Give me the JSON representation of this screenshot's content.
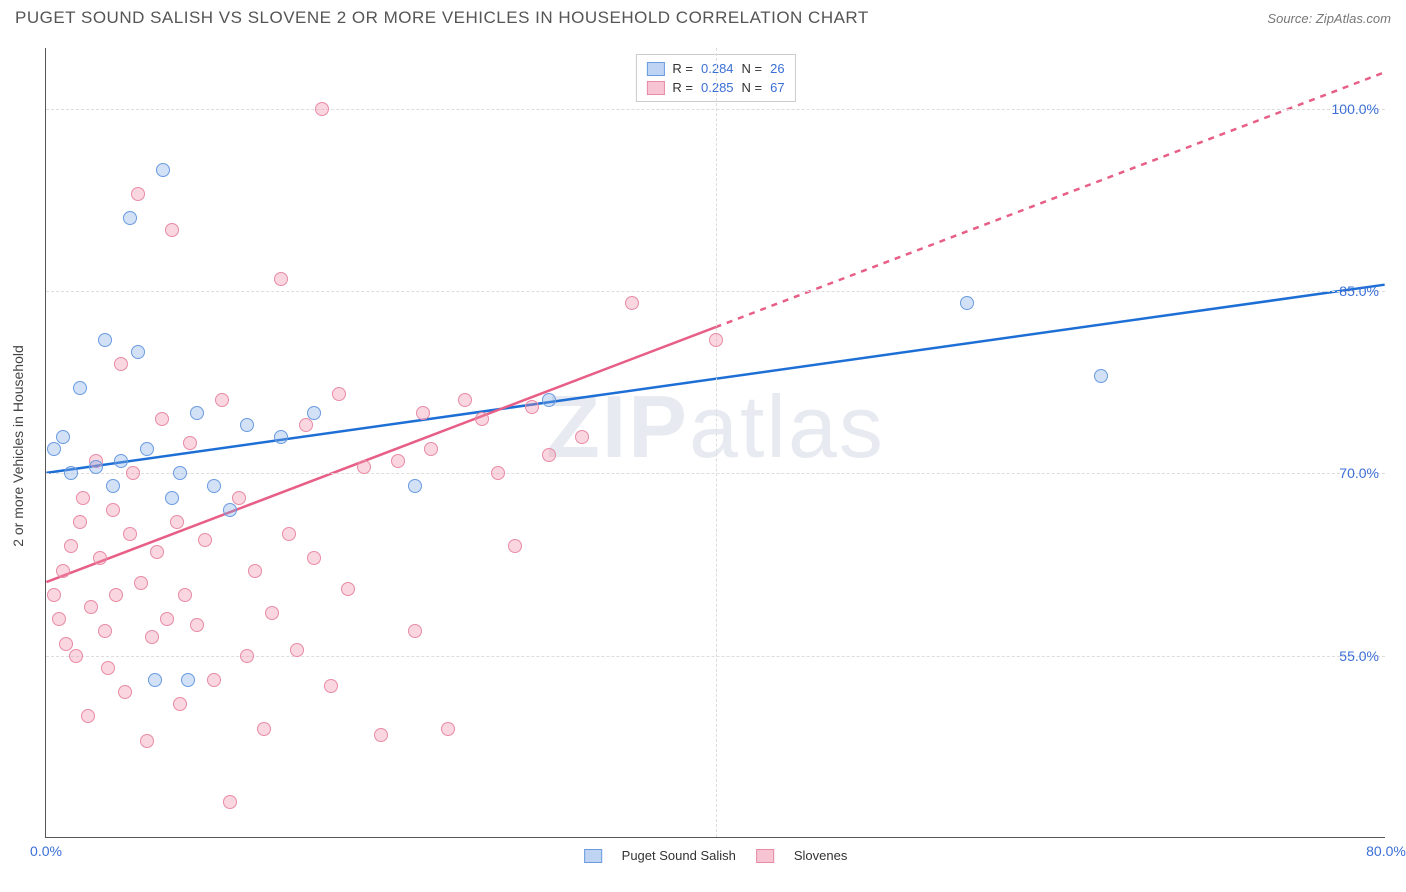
{
  "header": {
    "title": "PUGET SOUND SALISH VS SLOVENE 2 OR MORE VEHICLES IN HOUSEHOLD CORRELATION CHART",
    "source_label": "Source:",
    "source_value": "ZipAtlas.com"
  },
  "watermark": {
    "part1": "ZIP",
    "part2": "atlas"
  },
  "chart": {
    "type": "scatter",
    "xlim": [
      0,
      80
    ],
    "ylim": [
      40,
      105
    ],
    "x_ticks": [
      0,
      40,
      80
    ],
    "x_tick_labels": [
      "0.0%",
      "",
      "80.0%"
    ],
    "y_ticks": [
      55,
      70,
      85,
      100
    ],
    "y_tick_labels": [
      "55.0%",
      "70.0%",
      "85.0%",
      "100.0%"
    ],
    "yaxis_title": "2 or more Vehicles in Household",
    "grid_color": "#dddddd",
    "background_color": "#ffffff",
    "colors": {
      "blue_fill": "rgba(125,170,230,0.35)",
      "blue_stroke": "#6a9be0",
      "blue_line": "#1d6fd6",
      "pink_fill": "rgba(240,140,165,0.35)",
      "pink_stroke": "#e88aa5",
      "pink_line": "#e75f86",
      "axis_text": "#3b6fd6"
    },
    "legend_top": {
      "series": [
        {
          "color": "blue",
          "r_label": "R =",
          "r_val": "0.284",
          "n_label": "N =",
          "n_val": "26"
        },
        {
          "color": "pink",
          "r_label": "R =",
          "r_val": "0.285",
          "n_label": "N =",
          "n_val": "67"
        }
      ]
    },
    "legend_bottom": {
      "items": [
        {
          "color": "blue",
          "label": "Puget Sound Salish"
        },
        {
          "color": "pink",
          "label": "Slovenes"
        }
      ]
    },
    "trend_lines": {
      "blue": {
        "x1": 0,
        "y1": 70,
        "x2": 80,
        "y2": 85.5,
        "dashed_from_x": null
      },
      "pink": {
        "x1": 0,
        "y1": 61,
        "x2": 80,
        "y2": 103,
        "dashed_from_x": 40
      }
    },
    "series": {
      "blue": [
        [
          0.5,
          72
        ],
        [
          1,
          73
        ],
        [
          1.5,
          70
        ],
        [
          2,
          77
        ],
        [
          3,
          70.5
        ],
        [
          3.5,
          81
        ],
        [
          4,
          69
        ],
        [
          4.5,
          71
        ],
        [
          5,
          91
        ],
        [
          5.5,
          80
        ],
        [
          6,
          72
        ],
        [
          6.5,
          53
        ],
        [
          7,
          95
        ],
        [
          7.5,
          68
        ],
        [
          8,
          70
        ],
        [
          8.5,
          53
        ],
        [
          9,
          75
        ],
        [
          10,
          69
        ],
        [
          11,
          67
        ],
        [
          12,
          74
        ],
        [
          14,
          73
        ],
        [
          16,
          75
        ],
        [
          22,
          69
        ],
        [
          30,
          76
        ],
        [
          55,
          84
        ],
        [
          63,
          78
        ]
      ],
      "pink": [
        [
          0.5,
          60
        ],
        [
          0.8,
          58
        ],
        [
          1,
          62
        ],
        [
          1.2,
          56
        ],
        [
          1.5,
          64
        ],
        [
          1.8,
          55
        ],
        [
          2,
          66
        ],
        [
          2.2,
          68
        ],
        [
          2.5,
          50
        ],
        [
          2.7,
          59
        ],
        [
          3,
          71
        ],
        [
          3.2,
          63
        ],
        [
          3.5,
          57
        ],
        [
          3.7,
          54
        ],
        [
          4,
          67
        ],
        [
          4.2,
          60
        ],
        [
          4.5,
          79
        ],
        [
          4.7,
          52
        ],
        [
          5,
          65
        ],
        [
          5.2,
          70
        ],
        [
          5.5,
          93
        ],
        [
          5.7,
          61
        ],
        [
          6,
          48
        ],
        [
          6.3,
          56.5
        ],
        [
          6.6,
          63.5
        ],
        [
          6.9,
          74.5
        ],
        [
          7.2,
          58
        ],
        [
          7.5,
          90
        ],
        [
          7.8,
          66
        ],
        [
          8,
          51
        ],
        [
          8.3,
          60
        ],
        [
          8.6,
          72.5
        ],
        [
          9,
          57.5
        ],
        [
          9.5,
          64.5
        ],
        [
          10,
          53
        ],
        [
          10.5,
          76
        ],
        [
          11,
          43
        ],
        [
          11.5,
          68
        ],
        [
          12,
          55
        ],
        [
          12.5,
          62
        ],
        [
          13,
          49
        ],
        [
          13.5,
          58.5
        ],
        [
          14,
          86
        ],
        [
          14.5,
          65
        ],
        [
          15,
          55.5
        ],
        [
          15.5,
          74
        ],
        [
          16,
          63
        ],
        [
          16.5,
          100
        ],
        [
          17,
          52.5
        ],
        [
          17.5,
          76.5
        ],
        [
          18,
          60.5
        ],
        [
          19,
          70.5
        ],
        [
          20,
          48.5
        ],
        [
          21,
          71
        ],
        [
          22,
          57
        ],
        [
          22.5,
          75
        ],
        [
          23,
          72
        ],
        [
          24,
          49
        ],
        [
          25,
          76
        ],
        [
          26,
          74.5
        ],
        [
          27,
          70
        ],
        [
          28,
          64
        ],
        [
          29,
          75.5
        ],
        [
          30,
          71.5
        ],
        [
          32,
          73
        ],
        [
          35,
          84
        ],
        [
          40,
          81
        ]
      ]
    }
  }
}
